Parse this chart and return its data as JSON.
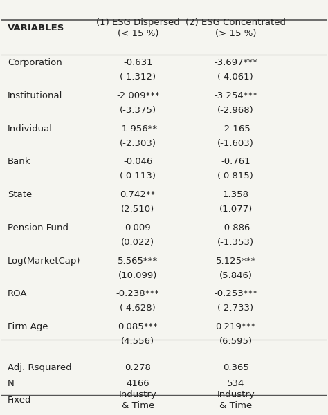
{
  "title": "",
  "col_headers": [
    "VARIABLES",
    "(1) ESG Dispersed\n(< 15 %)",
    "(2) ESG Concentrated\n(> 15 %)"
  ],
  "rows": [
    [
      "Corporation",
      "-0.631",
      "-3.697***"
    ],
    [
      "",
      "(-1.312)",
      "(-4.061)"
    ],
    [
      "Institutional",
      "-2.009***",
      "-3.254***"
    ],
    [
      "",
      "(-3.375)",
      "(-2.968)"
    ],
    [
      "Individual",
      "-1.956**",
      "-2.165"
    ],
    [
      "",
      "(-2.303)",
      "(-1.603)"
    ],
    [
      "Bank",
      "-0.046",
      "-0.761"
    ],
    [
      "",
      "(-0.113)",
      "(-0.815)"
    ],
    [
      "State",
      "0.742**",
      "1.358"
    ],
    [
      "",
      "(2.510)",
      "(1.077)"
    ],
    [
      "Pension Fund",
      "0.009",
      "-0.886"
    ],
    [
      "",
      "(0.022)",
      "(-1.353)"
    ],
    [
      "Log(MarketCap)",
      "5.565***",
      "5.125***"
    ],
    [
      "",
      "(10.099)",
      "(5.846)"
    ],
    [
      "ROA",
      "-0.238***",
      "-0.253***"
    ],
    [
      "",
      "(-4.628)",
      "(-2.733)"
    ],
    [
      "Firm Age",
      "0.085***",
      "0.219***"
    ],
    [
      "",
      "(4.556)",
      "(6.595)"
    ]
  ],
  "footer_rows": [
    [
      "Adj. Rsquared",
      "0.278",
      "0.365"
    ],
    [
      "N",
      "4166",
      "534"
    ],
    [
      "Fixed",
      "Industry\n& Time",
      "Industry\n& Time"
    ]
  ],
  "bg_color": "#f5f5f0",
  "text_color": "#222222",
  "line_color": "#555555",
  "font_size": 9.5,
  "header_font_size": 9.5
}
